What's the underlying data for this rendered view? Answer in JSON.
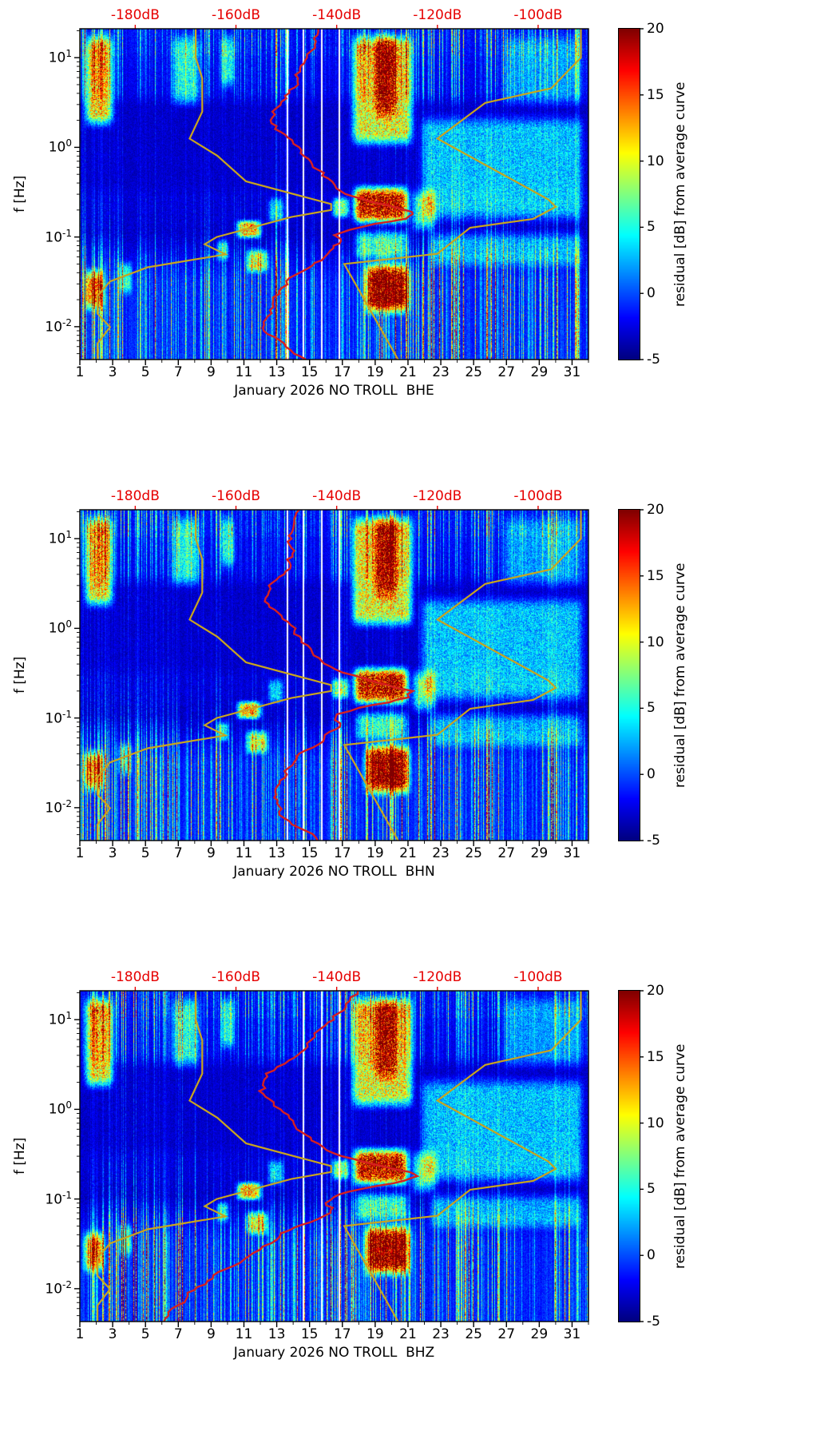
{
  "chart_data": {
    "type": "heatmap",
    "description": "Three seismic power-spectral-density residual spectrograms (station NO TROLL, channels BHE/BHN/BHZ, January 2026) with jet colormap, overlaid Peterson NLNM/NHNM model curves (yellow) and station average PSD curve (red) referenced to the red dB axis on top.",
    "ylabel": "f [Hz]",
    "x_range": [
      1,
      32
    ],
    "f_range": [
      0.0043,
      21
    ],
    "x_ticks": [
      1,
      3,
      5,
      7,
      9,
      11,
      13,
      15,
      17,
      19,
      21,
      23,
      25,
      27,
      29,
      31
    ],
    "y_tick_exponents": [
      1,
      0,
      -1,
      -2
    ],
    "colorbar": {
      "label": "residual [dB] from average curve",
      "min": -5,
      "max": 20,
      "ticks": [
        20,
        15,
        10,
        5,
        0,
        -5
      ],
      "colormap": "jet"
    },
    "top_axis": {
      "color": "#e60000",
      "db_min": -191,
      "db_max": -90,
      "tick_values": [
        -180,
        -160,
        -140,
        -120,
        -100
      ],
      "tick_labels": [
        "-180dB",
        "-160dB",
        "-140dB",
        "-120dB",
        "-100dB"
      ]
    },
    "models": {
      "color": "#c8a41f",
      "nlnm": [
        [
          21,
          -168
        ],
        [
          10,
          -168
        ],
        [
          5.88,
          -166.7
        ],
        [
          2.5,
          -166.7
        ],
        [
          1.25,
          -169.2
        ],
        [
          0.806,
          -163.7
        ],
        [
          0.417,
          -158.0
        ],
        [
          0.233,
          -141.1
        ],
        [
          0.2,
          -141.1
        ],
        [
          0.167,
          -149.0
        ],
        [
          0.1,
          -163.8
        ],
        [
          0.083,
          -166.2
        ],
        [
          0.064,
          -162.1
        ],
        [
          0.046,
          -177.5
        ],
        [
          0.032,
          -185.0
        ],
        [
          0.022,
          -187.5
        ],
        [
          0.014,
          -187.5
        ],
        [
          0.0099,
          -185.0
        ],
        [
          0.0065,
          -187.5
        ],
        [
          0.0043,
          -187.5
        ]
      ],
      "nhnm": [
        [
          21,
          -91.5
        ],
        [
          10,
          -91.5
        ],
        [
          4.55,
          -97.4
        ],
        [
          3.13,
          -110.5
        ],
        [
          1.25,
          -120.0
        ],
        [
          0.263,
          -98.0
        ],
        [
          0.217,
          -96.5
        ],
        [
          0.159,
          -101.0
        ],
        [
          0.127,
          -113.5
        ],
        [
          0.065,
          -120.0
        ],
        [
          0.05,
          -138.5
        ],
        [
          0.0043,
          -127.8
        ]
      ]
    },
    "hotspots_common": [
      {
        "days": [
          1.0,
          3.3
        ],
        "freq": [
          1.5,
          21
        ],
        "amp": 14
      },
      {
        "days": [
          1.0,
          2.7
        ],
        "freq": [
          0.013,
          0.05
        ],
        "amp": 14
      },
      {
        "days": [
          3.2,
          4.3
        ],
        "freq": [
          0.02,
          0.06
        ],
        "amp": 7
      },
      {
        "days": [
          6.3,
          8.6
        ],
        "freq": [
          2.5,
          21
        ],
        "amp": 7
      },
      {
        "days": [
          9.4,
          10.6
        ],
        "freq": [
          4,
          21
        ],
        "amp": 7
      },
      {
        "days": [
          9.2,
          10.2
        ],
        "freq": [
          0.05,
          0.1
        ],
        "amp": 7
      },
      {
        "days": [
          10.3,
          12.3
        ],
        "freq": [
          0.09,
          0.165
        ],
        "amp": 15
      },
      {
        "days": [
          10.9,
          12.7
        ],
        "freq": [
          0.036,
          0.08
        ],
        "amp": 11
      },
      {
        "days": [
          12.3,
          13.6
        ],
        "freq": [
          0.13,
          0.3
        ],
        "amp": 6
      },
      {
        "days": [
          16.2,
          17.6
        ],
        "freq": [
          0.15,
          0.3
        ],
        "amp": 10
      },
      {
        "days": [
          17.3,
          21.6
        ],
        "freq": [
          0.9,
          21
        ],
        "amp": 13
      },
      {
        "days": [
          18.7,
          20.6
        ],
        "freq": [
          1.8,
          21
        ],
        "amp": 9
      },
      {
        "days": [
          17.4,
          21.3
        ],
        "freq": [
          0.125,
          0.42
        ],
        "amp": 21
      },
      {
        "days": [
          17.5,
          21.3
        ],
        "freq": [
          0.05,
          0.13
        ],
        "amp": 8
      },
      {
        "days": [
          18.1,
          21.4
        ],
        "freq": [
          0.012,
          0.06
        ],
        "amp": 21
      },
      {
        "days": [
          21.0,
          23.0
        ],
        "freq": [
          0.1,
          0.4
        ],
        "amp": 8
      },
      {
        "days": [
          21.5,
          32
        ],
        "freq": [
          0.13,
          2.6
        ],
        "amp": 6
      },
      {
        "days": [
          22,
          32
        ],
        "freq": [
          0.04,
          0.13
        ],
        "amp": 5
      },
      {
        "days": [
          26.5,
          32
        ],
        "freq": [
          2.5,
          21
        ],
        "amp": 4
      }
    ],
    "panels": [
      {
        "channel": "BHE",
        "title": "January 2026 NO TROLL  BHE",
        "seed": 11,
        "gap_days": [
          13.6,
          14.6,
          15.7,
          16.8
        ],
        "average_curve_color": "#d62020",
        "average_curve": [
          [
            21,
            -143.5
          ],
          [
            14,
            -144.5
          ],
          [
            10,
            -145.5
          ],
          [
            7,
            -147
          ],
          [
            5,
            -148.5
          ],
          [
            3.5,
            -150.5
          ],
          [
            2.5,
            -152
          ],
          [
            2,
            -152.5
          ],
          [
            1.6,
            -152
          ],
          [
            1.2,
            -150
          ],
          [
            1.0,
            -148.5
          ],
          [
            0.8,
            -146.5
          ],
          [
            0.6,
            -144.5
          ],
          [
            0.45,
            -142.5
          ],
          [
            0.35,
            -140
          ],
          [
            0.28,
            -136
          ],
          [
            0.23,
            -130
          ],
          [
            0.2,
            -125.5
          ],
          [
            0.18,
            -124.5
          ],
          [
            0.16,
            -127
          ],
          [
            0.14,
            -133
          ],
          [
            0.12,
            -139
          ],
          [
            0.105,
            -141.5
          ],
          [
            0.095,
            -141
          ],
          [
            0.085,
            -139.5
          ],
          [
            0.075,
            -140.5
          ],
          [
            0.065,
            -142.5
          ],
          [
            0.055,
            -144.5
          ],
          [
            0.045,
            -146.5
          ],
          [
            0.035,
            -148.5
          ],
          [
            0.025,
            -151
          ],
          [
            0.018,
            -153
          ],
          [
            0.013,
            -154
          ],
          [
            0.009,
            -153
          ],
          [
            0.0065,
            -150
          ],
          [
            0.005,
            -147.5
          ],
          [
            0.0043,
            -146
          ]
        ]
      },
      {
        "channel": "BHN",
        "title": "January 2026 NO TROLL  BHN",
        "seed": 22,
        "gap_days": [
          13.6,
          14.6,
          15.7,
          16.8
        ],
        "average_curve_color": "#d62020",
        "average_curve": [
          [
            21,
            -147
          ],
          [
            10,
            -148
          ],
          [
            5,
            -150
          ],
          [
            3,
            -152
          ],
          [
            2,
            -153
          ],
          [
            1.5,
            -152
          ],
          [
            1.0,
            -149
          ],
          [
            0.7,
            -146
          ],
          [
            0.5,
            -143.5
          ],
          [
            0.35,
            -140
          ],
          [
            0.25,
            -132
          ],
          [
            0.2,
            -125
          ],
          [
            0.17,
            -126
          ],
          [
            0.15,
            -130
          ],
          [
            0.13,
            -136
          ],
          [
            0.11,
            -140.5
          ],
          [
            0.095,
            -140.5
          ],
          [
            0.08,
            -139.5
          ],
          [
            0.07,
            -141
          ],
          [
            0.055,
            -143.5
          ],
          [
            0.04,
            -146.5
          ],
          [
            0.03,
            -148.5
          ],
          [
            0.02,
            -151
          ],
          [
            0.013,
            -153
          ],
          [
            0.009,
            -152
          ],
          [
            0.006,
            -148
          ],
          [
            0.0043,
            -144
          ]
        ]
      },
      {
        "channel": "BHZ",
        "title": "January 2026 NO TROLL  BHZ",
        "seed": 33,
        "gap_days": [
          14.6,
          15.7,
          16.8
        ],
        "average_curve_color": "#d62020",
        "average_curve": [
          [
            21,
            -136
          ],
          [
            15,
            -138
          ],
          [
            10,
            -140.5
          ],
          [
            7,
            -143
          ],
          [
            5,
            -146
          ],
          [
            3.5,
            -150
          ],
          [
            2.5,
            -153.5
          ],
          [
            2,
            -155
          ],
          [
            1.6,
            -155.5
          ],
          [
            1.2,
            -154
          ],
          [
            1.0,
            -152.5
          ],
          [
            0.8,
            -150
          ],
          [
            0.6,
            -147
          ],
          [
            0.45,
            -144
          ],
          [
            0.35,
            -140.5
          ],
          [
            0.28,
            -135.5
          ],
          [
            0.23,
            -129.5
          ],
          [
            0.2,
            -125.5
          ],
          [
            0.18,
            -124.5
          ],
          [
            0.16,
            -127
          ],
          [
            0.14,
            -132.5
          ],
          [
            0.12,
            -139
          ],
          [
            0.105,
            -142
          ],
          [
            0.09,
            -142
          ],
          [
            0.08,
            -141
          ],
          [
            0.07,
            -142
          ],
          [
            0.055,
            -145
          ],
          [
            0.045,
            -148
          ],
          [
            0.035,
            -152
          ],
          [
            0.025,
            -157
          ],
          [
            0.018,
            -161
          ],
          [
            0.013,
            -165
          ],
          [
            0.009,
            -169.5
          ],
          [
            0.0065,
            -172.5
          ],
          [
            0.005,
            -174
          ],
          [
            0.0043,
            -173.5
          ]
        ]
      }
    ]
  }
}
